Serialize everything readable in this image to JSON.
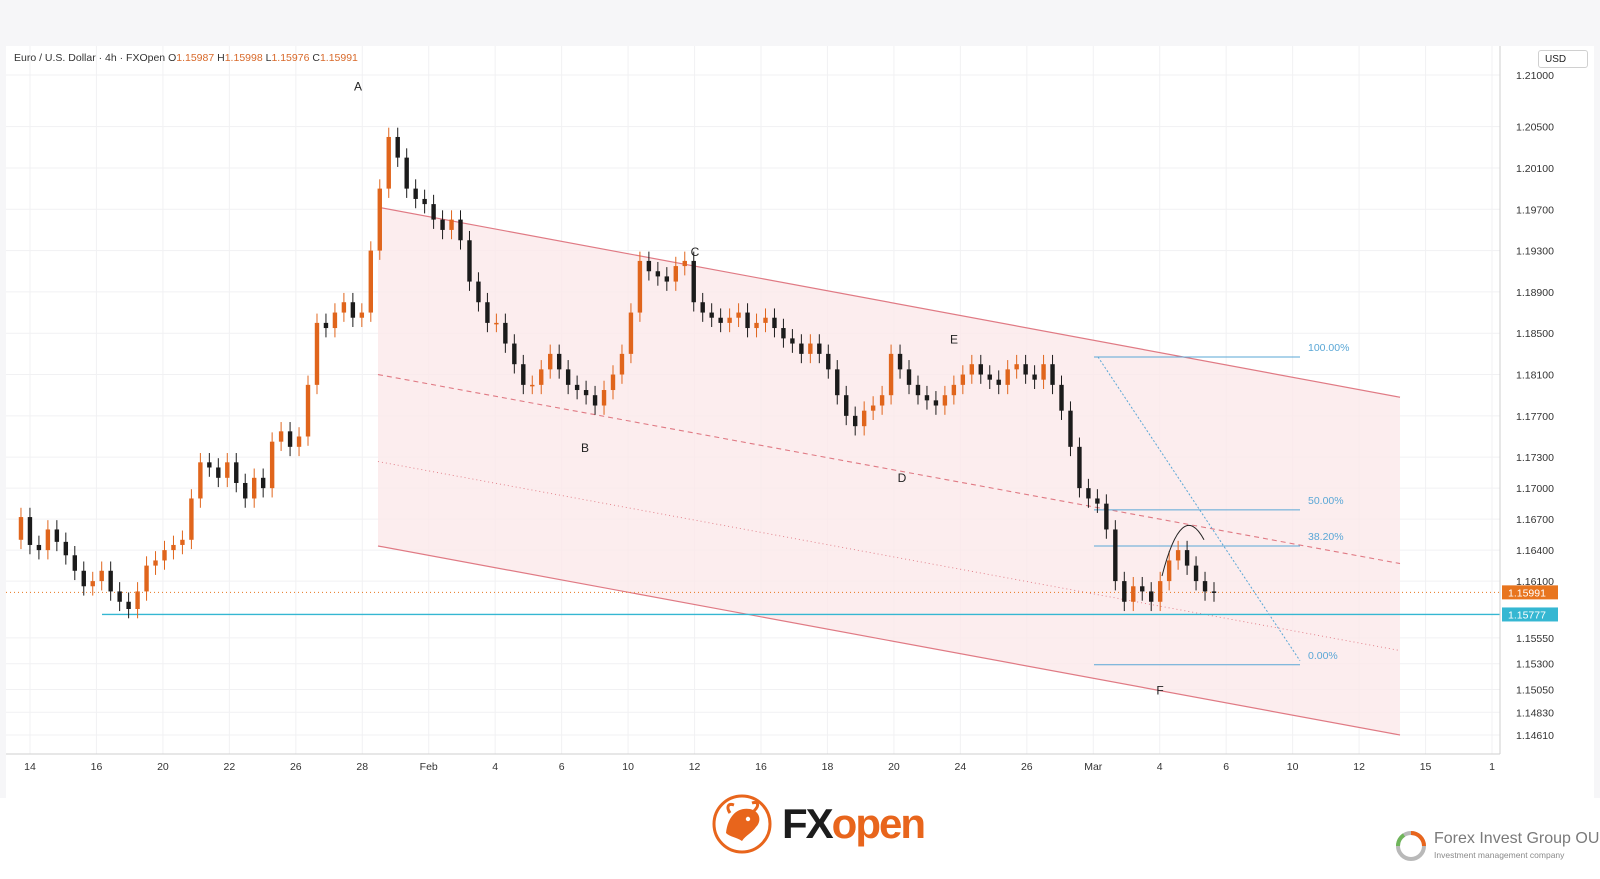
{
  "symbol": {
    "name": "Euro / U.S. Dollar · 4h · FXOpen",
    "o_label": "O",
    "o": "1.15987",
    "h_label": "H",
    "h": "1.15998",
    "l_label": "L",
    "l": "1.15976",
    "c_label": "C",
    "c": "1.15991"
  },
  "price_unit": "USD",
  "brand": {
    "fx": "FX",
    "open": "open"
  },
  "company": {
    "name": "Forex Invest Group OU",
    "tagline": "Investment management company"
  },
  "colors": {
    "bull": "#e0651c",
    "bear": "#1b1b1b",
    "channel": "#e07a84",
    "channel_fill": "#fbe9ea",
    "fib": "#5aa7d6",
    "support": "#35b7d2",
    "last_price": "#e8751e"
  },
  "chart_data": {
    "type": "candlestick",
    "x_ticks": [
      "14",
      "16",
      "20",
      "22",
      "26",
      "28",
      "Feb",
      "4",
      "6",
      "10",
      "12",
      "16",
      "18",
      "20",
      "24",
      "26",
      "Mar",
      "4",
      "6",
      "10",
      "12",
      "15",
      "1"
    ],
    "y_ticks": [
      "1.21000",
      "1.20500",
      "1.20100",
      "1.19700",
      "1.19300",
      "1.18900",
      "1.18500",
      "1.18100",
      "1.17700",
      "1.17300",
      "1.17000",
      "1.16700",
      "1.16400",
      "1.16100",
      "1.15550",
      "1.15300",
      "1.15050",
      "1.14830",
      "1.14610"
    ],
    "last_price": "1.15991",
    "support_level": "1.15777",
    "wave_labels": [
      "A",
      "B",
      "C",
      "D",
      "E",
      "F"
    ],
    "fibonacci": [
      {
        "label": "100.00%",
        "price": 1.1827
      },
      {
        "label": "50.00%",
        "price": 1.1679
      },
      {
        "label": "38.20%",
        "price": 1.1644
      },
      {
        "label": "0.00%",
        "price": 1.1529
      }
    ],
    "channel": {
      "upper": [
        [
          1.1972,
          1.1788
        ]
      ],
      "middle": [
        [
          1.181,
          1.1627
        ]
      ],
      "lower": [
        [
          1.1644,
          1.1461
        ]
      ]
    },
    "ohlc_path": [
      1.165,
      1.1672,
      1.1645,
      1.164,
      1.166,
      1.1648,
      1.1635,
      1.162,
      1.1605,
      1.161,
      1.162,
      1.16,
      1.159,
      1.1583,
      1.16,
      1.1625,
      1.163,
      1.164,
      1.1645,
      1.165,
      1.169,
      1.1725,
      1.172,
      1.171,
      1.1725,
      1.1705,
      1.169,
      1.171,
      1.17,
      1.1745,
      1.1755,
      1.174,
      1.175,
      1.18,
      1.186,
      1.1855,
      1.187,
      1.188,
      1.1865,
      1.187,
      1.193,
      1.199,
      1.204,
      1.202,
      1.199,
      1.198,
      1.1975,
      1.196,
      1.195,
      1.196,
      1.194,
      1.19,
      1.188,
      1.186,
      1.186,
      1.184,
      1.182,
      1.18,
      1.18,
      1.1815,
      1.183,
      1.1815,
      1.18,
      1.1795,
      1.179,
      1.178,
      1.1795,
      1.181,
      1.183,
      1.187,
      1.192,
      1.191,
      1.1905,
      1.19,
      1.1915,
      1.192,
      1.188,
      1.187,
      1.1865,
      1.186,
      1.1865,
      1.187,
      1.1855,
      1.186,
      1.1865,
      1.1855,
      1.1845,
      1.184,
      1.183,
      1.184,
      1.183,
      1.1815,
      1.179,
      1.177,
      1.176,
      1.1775,
      1.178,
      1.179,
      1.183,
      1.1815,
      1.18,
      1.179,
      1.1785,
      1.178,
      1.179,
      1.18,
      1.181,
      1.182,
      1.181,
      1.1805,
      1.18,
      1.1815,
      1.182,
      1.181,
      1.1805,
      1.182,
      1.18,
      1.1775,
      1.174,
      1.17,
      1.169,
      1.1685,
      1.166,
      1.161,
      1.159,
      1.1605,
      1.16,
      1.159,
      1.161,
      1.163,
      1.164,
      1.1625,
      1.161,
      1.16,
      1.1599
    ]
  }
}
